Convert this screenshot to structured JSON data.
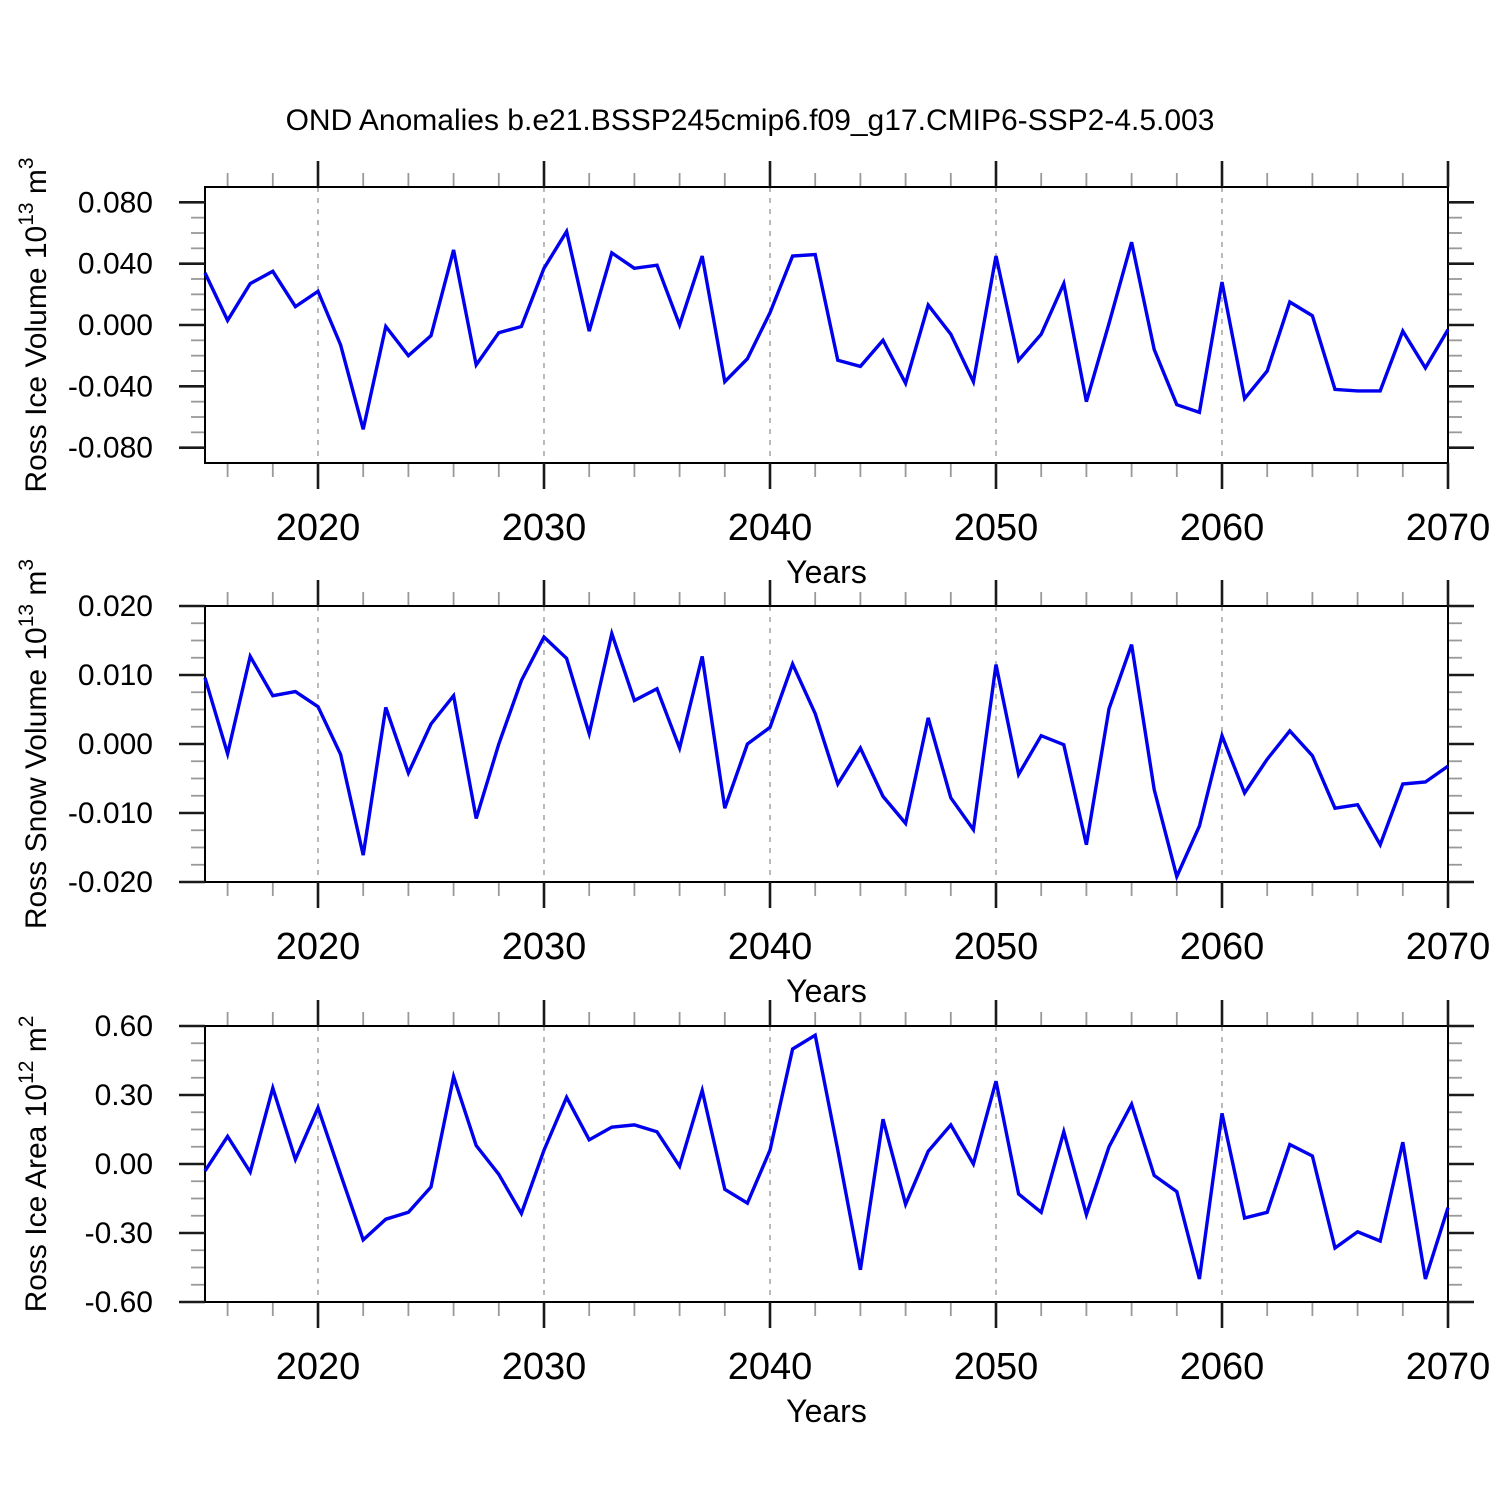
{
  "figure_title": "OND Anomalies b.e21.BSSP245cmip6.f09_g17.CMIP6-SSP2-4.5.003",
  "chart_data": {
    "type": "line",
    "suptitle": "OND Anomalies b.e21.BSSP245cmip6.f09_g17.CMIP6-SSP2-4.5.003",
    "xlabel": "Years",
    "line_color": "#0000EE",
    "grid_color": "#A8A8A8",
    "legend": "none",
    "grid": "vertical-dashed-at-decades",
    "x": [
      2015,
      2016,
      2017,
      2018,
      2019,
      2020,
      2021,
      2022,
      2023,
      2024,
      2025,
      2026,
      2027,
      2028,
      2029,
      2030,
      2031,
      2032,
      2033,
      2034,
      2035,
      2036,
      2037,
      2038,
      2039,
      2040,
      2041,
      2042,
      2043,
      2044,
      2045,
      2046,
      2047,
      2048,
      2049,
      2050,
      2051,
      2052,
      2053,
      2054,
      2055,
      2056,
      2057,
      2058,
      2059,
      2060,
      2061,
      2062,
      2063,
      2064,
      2065,
      2066,
      2067,
      2068,
      2069,
      2070
    ],
    "xlim": [
      2015,
      2070
    ],
    "x_major": [
      2020,
      2030,
      2040,
      2050,
      2060,
      2070
    ],
    "x_minor_step": 2,
    "x_gridlines": [
      2020,
      2030,
      2040,
      2050,
      2060
    ],
    "subplots": [
      {
        "id": "ross-ice-volume",
        "ylabel": "Ross Ice Volume 10^13 m^3",
        "ylabel_parts": [
          [
            "t",
            "Ross Ice Volume 10"
          ],
          [
            "sup",
            "13"
          ],
          [
            "t",
            " m"
          ],
          [
            "sup",
            "3"
          ]
        ],
        "ylim": [
          -0.09,
          0.09
        ],
        "yticks": [
          0.08,
          0.04,
          0.0,
          -0.04,
          -0.08
        ],
        "ytick_labels": [
          "0.080",
          "0.040",
          "0.000",
          "-0.040",
          "-0.080"
        ],
        "ytick_step": 0.04,
        "yminor_step": 0.01,
        "values": [
          0.034,
          0.003,
          0.027,
          0.035,
          0.012,
          0.022,
          -0.013,
          -0.068,
          -0.001,
          -0.02,
          -0.007,
          0.049,
          -0.026,
          -0.005,
          -0.001,
          0.037,
          0.061,
          -0.004,
          0.047,
          0.037,
          0.039,
          0.0,
          0.045,
          -0.037,
          -0.022,
          0.008,
          0.045,
          0.046,
          -0.023,
          -0.027,
          -0.01,
          -0.038,
          0.013,
          -0.006,
          -0.037,
          0.045,
          -0.023,
          -0.006,
          0.027,
          -0.05,
          0.001,
          0.054,
          -0.016,
          -0.052,
          -0.057,
          0.028,
          -0.048,
          -0.03,
          0.015,
          0.006,
          -0.042,
          -0.043,
          -0.043,
          -0.004,
          -0.028,
          -0.003
        ]
      },
      {
        "id": "ross-snow-volume",
        "ylabel": "Ross Snow Volume 10^13 m^3",
        "ylabel_parts": [
          [
            "t",
            "Ross Snow Volume 10"
          ],
          [
            "sup",
            "13"
          ],
          [
            "t",
            " m"
          ],
          [
            "sup",
            "3"
          ]
        ],
        "ylim": [
          -0.02,
          0.02
        ],
        "yticks": [
          0.02,
          0.01,
          0.0,
          -0.01,
          -0.02
        ],
        "ytick_labels": [
          "0.020",
          "0.010",
          "0.000",
          "-0.010",
          "-0.020"
        ],
        "ytick_step": 0.01,
        "yminor_step": 0.0025,
        "values": [
          0.0096,
          -0.0014,
          0.0127,
          0.007,
          0.0076,
          0.0054,
          -0.0015,
          -0.0161,
          0.0053,
          -0.0042,
          0.0029,
          0.007,
          -0.0108,
          0.0,
          0.0092,
          0.0155,
          0.0124,
          0.0015,
          0.016,
          0.0063,
          0.008,
          -0.0006,
          0.0127,
          -0.0093,
          0.0,
          0.0024,
          0.0116,
          0.0044,
          -0.0058,
          -0.0006,
          -0.0076,
          -0.0115,
          0.0038,
          -0.0078,
          -0.0124,
          0.0115,
          -0.0044,
          0.0012,
          -0.0001,
          -0.0146,
          0.0051,
          0.0144,
          -0.0066,
          -0.0192,
          -0.0119,
          0.0012,
          -0.0071,
          -0.0022,
          0.0019,
          -0.0017,
          -0.0093,
          -0.0088,
          -0.0146,
          -0.0058,
          -0.0055,
          -0.0032
        ]
      },
      {
        "id": "ross-ice-area",
        "ylabel": "Ross Ice Area 10^12 m^2",
        "ylabel_parts": [
          [
            "t",
            "Ross Ice Area 10"
          ],
          [
            "sup",
            "12"
          ],
          [
            "t",
            " m"
          ],
          [
            "sup",
            "2"
          ]
        ],
        "ylim": [
          -0.6,
          0.6
        ],
        "yticks": [
          0.6,
          0.3,
          0.0,
          -0.3,
          -0.6
        ],
        "ytick_labels": [
          "0.60",
          "0.30",
          "0.00",
          "-0.30",
          "-0.60"
        ],
        "ytick_step": 0.3,
        "yminor_step": 0.075,
        "values": [
          -0.03,
          0.12,
          -0.035,
          0.33,
          0.02,
          0.245,
          -0.045,
          -0.33,
          -0.24,
          -0.21,
          -0.1,
          0.38,
          0.08,
          -0.045,
          -0.215,
          0.06,
          0.29,
          0.105,
          0.16,
          0.17,
          0.14,
          -0.01,
          0.32,
          -0.11,
          -0.17,
          0.06,
          0.5,
          0.56,
          0.06,
          -0.46,
          0.195,
          -0.175,
          0.055,
          0.17,
          0.0,
          0.36,
          -0.13,
          -0.21,
          0.14,
          -0.22,
          0.075,
          0.26,
          -0.05,
          -0.12,
          -0.5,
          0.22,
          -0.235,
          -0.21,
          0.085,
          0.035,
          -0.365,
          -0.295,
          -0.335,
          0.095,
          -0.5,
          -0.19
        ]
      }
    ]
  }
}
